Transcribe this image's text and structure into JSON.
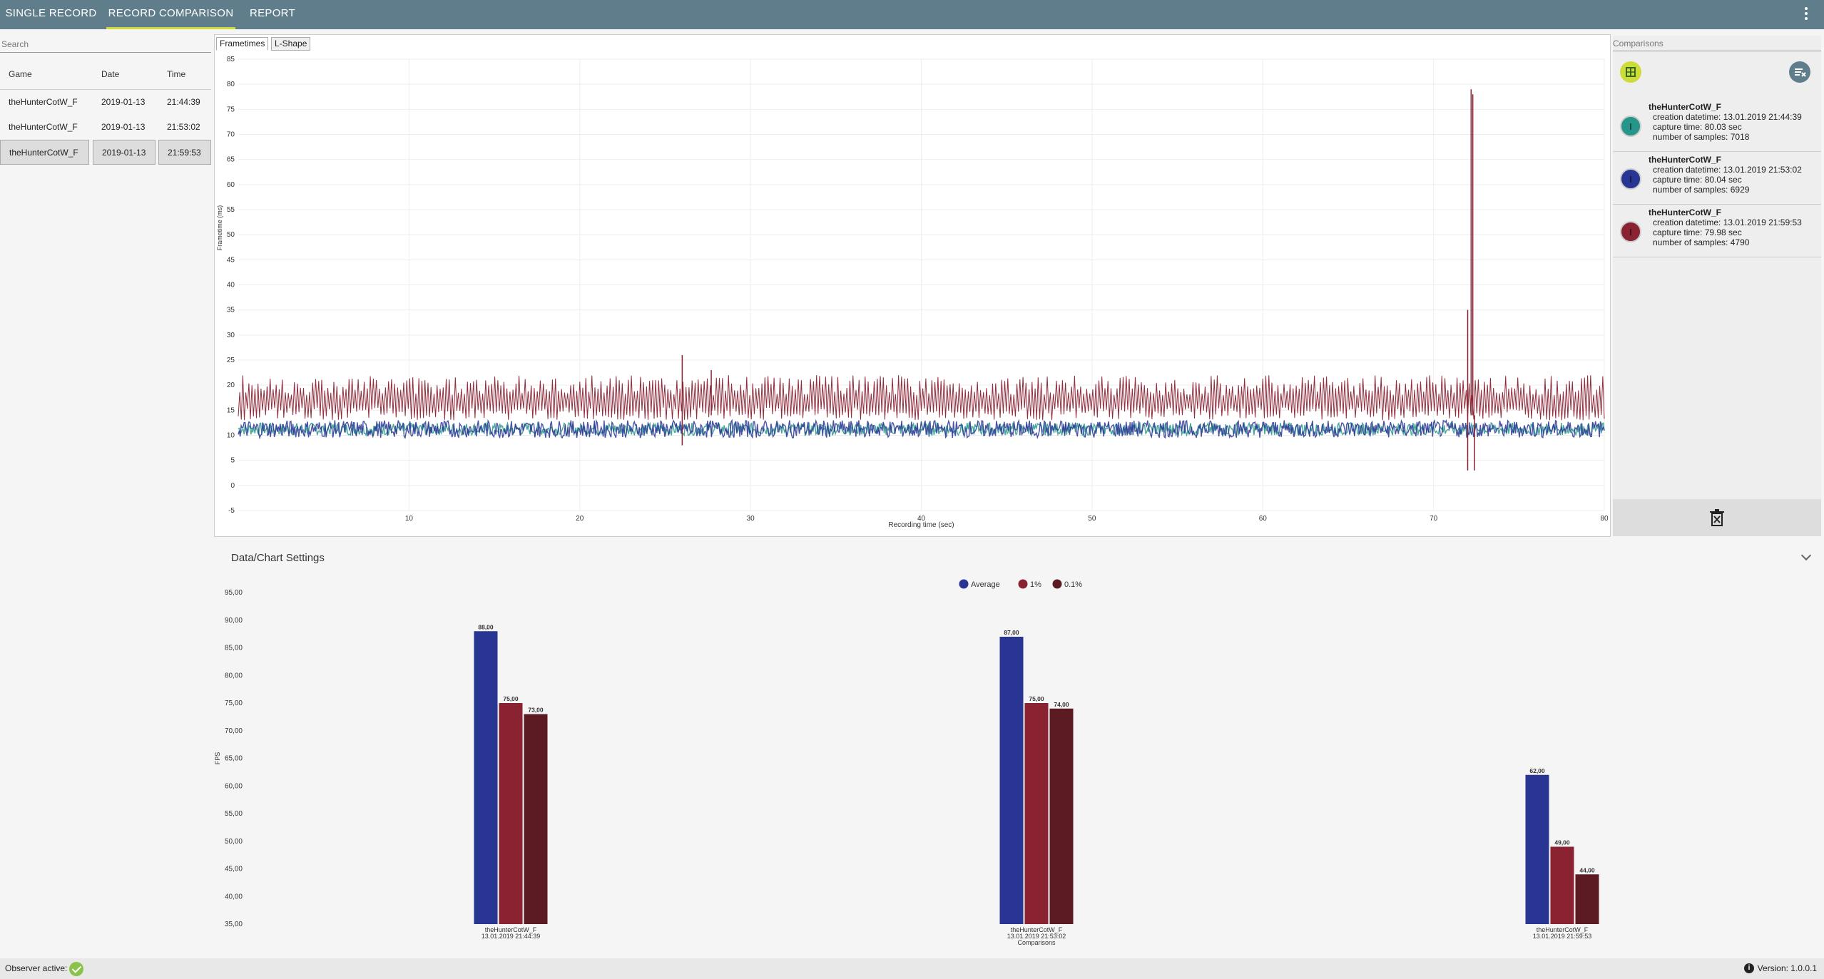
{
  "nav": {
    "tabs": [
      {
        "label": "SINGLE RECORD",
        "active": false
      },
      {
        "label": "RECORD COMPARISON",
        "active": true
      },
      {
        "label": "REPORT",
        "active": false
      }
    ],
    "accent": "#cddc39",
    "bar_color": "#607d8b"
  },
  "records": {
    "search_placeholder": "Search",
    "columns": [
      "Game",
      "Date",
      "Time"
    ],
    "rows": [
      {
        "game": "theHunterCotW_F",
        "date": "2019-01-13",
        "time": "21:44:39"
      },
      {
        "game": "theHunterCotW_F",
        "date": "2019-01-13",
        "time": "21:53:02"
      },
      {
        "game": "theHunterCotW_F",
        "date": "2019-01-13",
        "time": "21:59:53",
        "selected": true
      }
    ]
  },
  "chart_tabs": [
    {
      "label": "Frametimes",
      "active": true
    },
    {
      "label": "L-Shape",
      "active": false
    }
  ],
  "comparisons": {
    "title": "Comparisons",
    "items": [
      {
        "name": "theHunterCotW_F",
        "creation": "creation datetime: 13.01.2019 21:44:39",
        "capture": "capture time: 80.03 sec",
        "samples": "number of samples: 7018",
        "color": "#26968a"
      },
      {
        "name": "theHunterCotW_F",
        "creation": "creation datetime: 13.01.2019 21:53:02",
        "capture": "capture time: 80.04 sec",
        "samples": "number of samples: 6929",
        "color": "#283593"
      },
      {
        "name": "theHunterCotW_F",
        "creation": "creation datetime: 13.01.2019 21:59:53",
        "capture": "capture time: 79.98 sec",
        "samples": "number of samples: 4790",
        "color": "#8b2232"
      }
    ]
  },
  "settings_label": "Data/Chart Settings",
  "status": {
    "observer": "Observer active:",
    "version": "Version: 1.0.0.1"
  },
  "chart_data": [
    {
      "type": "line",
      "xlabel": "Recording time (sec)",
      "ylabel": "Frametime (ms)",
      "xlim": [
        0,
        80
      ],
      "ylim": [
        -5,
        85
      ],
      "xticks": [
        10,
        20,
        30,
        40,
        50,
        60,
        70,
        80
      ],
      "yticks": [
        -5,
        0,
        5,
        10,
        15,
        20,
        25,
        30,
        35,
        40,
        45,
        50,
        55,
        60,
        65,
        70,
        75,
        80,
        85
      ],
      "grid": true,
      "series": [
        {
          "color": "#26968a",
          "low": 10,
          "high": 12.5,
          "x": [
            0,
            10,
            20,
            30,
            40,
            50,
            60,
            70,
            80
          ]
        },
        {
          "color": "#283593",
          "low": 9.5,
          "high": 13,
          "x": [
            0,
            10,
            20,
            30,
            40,
            50,
            60,
            70,
            80
          ]
        },
        {
          "color": "#8b2232",
          "low": 13,
          "high": 21,
          "spikes": [
            {
              "x": 26.0,
              "y": 26
            },
            {
              "x": 26.0,
              "y": 8
            },
            {
              "x": 27.7,
              "y": 23
            },
            {
              "x": 72.0,
              "y": 35
            },
            {
              "x": 72.0,
              "y": 3
            },
            {
              "x": 72.2,
              "y": 79
            },
            {
              "x": 72.3,
              "y": 78
            },
            {
              "x": 72.4,
              "y": 3
            }
          ]
        }
      ]
    },
    {
      "type": "bar",
      "ylabel": "FPS",
      "ylim": [
        35,
        95
      ],
      "yticks": [
        "35,00",
        "40,00",
        "45,00",
        "50,00",
        "55,00",
        "60,00",
        "65,00",
        "70,00",
        "75,00",
        "80,00",
        "85,00",
        "90,00",
        "95,00"
      ],
      "categories": [
        {
          "name": "theHunterCotW_F",
          "date": "13.01.2019 21:44:39"
        },
        {
          "name": "theHunterCotW_F",
          "date": "13.01.2019 21:53:02"
        },
        {
          "name": "theHunterCotW_F",
          "date": "13.01.2019 21:59:53"
        }
      ],
      "xlabel": "Comparisons",
      "legend": "top-center",
      "series": [
        {
          "name": "Average",
          "color": "#283593",
          "values": [
            88,
            87,
            62
          ],
          "labels": [
            "88,00",
            "87,00",
            "62,00"
          ]
        },
        {
          "name": "1%",
          "color": "#8b2232",
          "values": [
            75,
            75,
            49
          ],
          "labels": [
            "75,00",
            "75,00",
            "49,00"
          ]
        },
        {
          "name": "0.1%",
          "color": "#5c1a22",
          "values": [
            73,
            74,
            44
          ],
          "labels": [
            "73,00",
            "74,00",
            "44,00"
          ]
        }
      ]
    }
  ]
}
